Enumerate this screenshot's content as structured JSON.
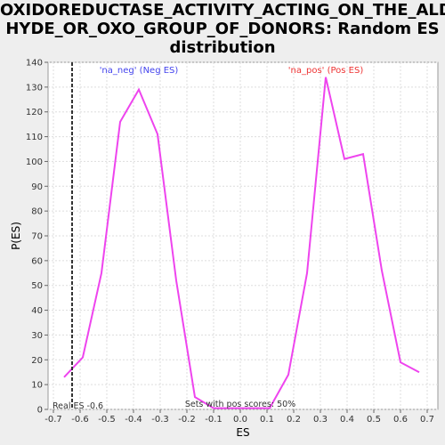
{
  "title_lines": [
    "OXIDOREDUCTASE_ACTIVITY_ACTING_ON_THE_ALDE",
    "HYDE_OR_OXO_GROUP_OF_DONORS: Random ES",
    "distribution"
  ],
  "chart_data": {
    "type": "line",
    "title": "OXIDOREDUCTASE_ACTIVITY_ACTING_ON_THE_ALDEHYDE_OR_OXO_GROUP_OF_DONORS: Random ES distribution",
    "xlabel": "ES",
    "ylabel": "P(ES)",
    "xlim": [
      -0.72,
      0.74
    ],
    "ylim": [
      0,
      140
    ],
    "x_ticks": [
      -0.7,
      -0.6,
      -0.5,
      -0.4,
      -0.3,
      -0.2,
      -0.1,
      0.0,
      0.1,
      0.2,
      0.3,
      0.4,
      0.5,
      0.6,
      0.7
    ],
    "x_tick_labels": [
      "-0.7",
      "-0.6",
      "-0.5",
      "-0.4",
      "-0.3",
      "-0.2",
      "-0.1",
      "0.0",
      "0.1",
      "0.2",
      "0.3",
      "0.4",
      "0.5",
      "0.6",
      "0.7"
    ],
    "y_ticks": [
      0,
      10,
      20,
      30,
      40,
      50,
      60,
      70,
      80,
      90,
      100,
      110,
      120,
      130,
      140
    ],
    "y_tick_labels": [
      "0",
      "10",
      "20",
      "30",
      "40",
      "50",
      "60",
      "70",
      "80",
      "90",
      "100",
      "110",
      "120",
      "130",
      "140"
    ],
    "grid": true,
    "series": [
      {
        "name": "distribution",
        "color": "#ee44ee",
        "x": [
          -0.66,
          -0.59,
          -0.52,
          -0.45,
          -0.38,
          -0.31,
          -0.24,
          -0.17,
          -0.1,
          -0.03,
          0.04,
          0.11,
          0.18,
          0.25,
          0.32,
          0.39,
          0.46,
          0.53,
          0.6,
          0.67
        ],
        "y": [
          13,
          21,
          55,
          116,
          129,
          111,
          52,
          5,
          0.5,
          0.5,
          0.5,
          0.5,
          14,
          55,
          134,
          101,
          103,
          56,
          19,
          15
        ]
      }
    ],
    "real_es": {
      "value": -0.63,
      "label": "Real ES -0.6"
    },
    "annotations": {
      "neg_label": "'na_neg' (Neg ES)",
      "pos_label": "'na_pos' (Pos ES)",
      "sets_text": "Sets with pos scores: 50%"
    },
    "colors": {
      "neg": "#4444ee",
      "pos": "#ee3333",
      "line": "#ee44ee",
      "grid": "#dddddd"
    }
  }
}
